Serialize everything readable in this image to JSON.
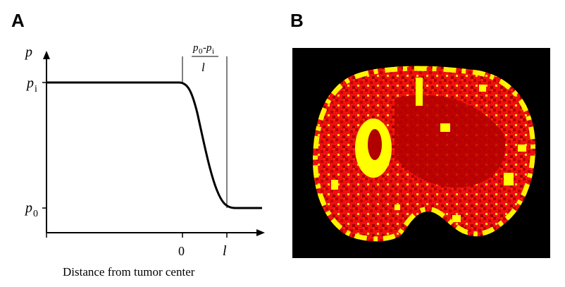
{
  "panel_a": {
    "label": "A",
    "y_axis_symbol": "p",
    "upper_level": {
      "base": "p",
      "subscript": "i"
    },
    "lower_level": {
      "base": "p",
      "subscript": "0"
    },
    "x_ticks": [
      "0",
      "l"
    ],
    "slope_annotation": {
      "numerator_p0": "p",
      "numerator_sub0": "0",
      "minus": "-",
      "numerator_pi": "p",
      "numerator_subi": "i",
      "denominator": "l"
    },
    "x_axis_label": "Distance from tumor center"
  },
  "panel_b": {
    "label": "B",
    "description_colors": {
      "background": "#000000",
      "dark_red": "#c00000",
      "red": "#ff0000",
      "yellow": "#ffff00"
    }
  }
}
